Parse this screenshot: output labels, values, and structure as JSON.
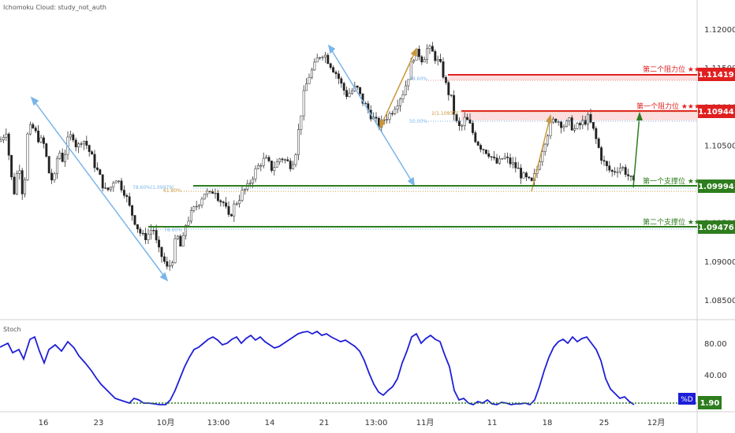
{
  "header": {
    "indicator_label": "Ichomoku Cloud: study_not_auth"
  },
  "stoch_label": "Stoch",
  "chart_data": {
    "type": "candlestick",
    "price_axis": {
      "min": 1.0825,
      "max": 1.1225,
      "ticks": [
        1.085,
        1.09,
        1.095,
        1.1,
        1.105,
        1.11,
        1.115,
        1.12
      ]
    },
    "stoch_axis": {
      "min": 0,
      "max": 100,
      "ticks": [
        40,
        80
      ]
    },
    "x_ticks": [
      "16",
      "23",
      "10月",
      "13:00",
      "14",
      "21",
      "13:00",
      "11月",
      "11",
      "18",
      "25",
      "12月"
    ],
    "resistance": [
      {
        "label": "第二个阻力位 ★★",
        "value": 1.11419,
        "color": "#e02020"
      },
      {
        "label": "第一个阻力位 ★★★",
        "value": 1.10944,
        "color": "#e02020"
      }
    ],
    "support": [
      {
        "label": "第一个支撑位 ★★",
        "value": 1.09994,
        "color": "#2e7d1e"
      },
      {
        "label": "第二个支撑位 ★★",
        "value": 1.09476,
        "color": "#2e7d1e"
      }
    ],
    "price_labels": [
      "1.11419",
      "1.10944",
      "1.09994",
      "1.09476"
    ],
    "fib_labels": [
      "78.60%",
      "1(1.10937)",
      "50.00%",
      "78.60%(1.09979)",
      "61.80%",
      "78.60%"
    ],
    "stoch_current": "1.90",
    "stoch_tag": "%D",
    "candle_path": [
      [
        0,
        1.1055
      ],
      [
        8,
        1.107
      ],
      [
        14,
        1.101
      ],
      [
        18,
        1.099
      ],
      [
        24,
        1.103
      ],
      [
        30,
        1.0975
      ],
      [
        34,
        1.106
      ],
      [
        40,
        1.1075
      ],
      [
        48,
        1.106
      ],
      [
        56,
        1.105
      ],
      [
        62,
        1.1015
      ],
      [
        68,
        1.1
      ],
      [
        74,
        1.1045
      ],
      [
        80,
        1.103
      ],
      [
        86,
        1.1055
      ],
      [
        92,
        1.1065
      ],
      [
        98,
        1.1045
      ],
      [
        104,
        1.106
      ],
      [
        110,
        1.105
      ],
      [
        116,
        1.1035
      ],
      [
        122,
        1.102
      ],
      [
        128,
        1.1005
      ],
      [
        134,
        1.099
      ],
      [
        140,
        1.0995
      ],
      [
        146,
        1.101
      ],
      [
        152,
        1.1
      ],
      [
        158,
        1.099
      ],
      [
        164,
        1.097
      ],
      [
        170,
        1.0955
      ],
      [
        176,
        1.094
      ],
      [
        182,
        1.093
      ],
      [
        188,
        1.0935
      ],
      [
        194,
        1.0945
      ],
      [
        200,
        1.0915
      ],
      [
        206,
        1.0905
      ],
      [
        212,
        1.089
      ],
      [
        218,
        1.09
      ],
      [
        224,
        1.0935
      ],
      [
        230,
        1.0915
      ],
      [
        236,
        1.095
      ],
      [
        242,
        1.096
      ],
      [
        248,
        1.097
      ],
      [
        254,
        1.098
      ],
      [
        260,
        1.099
      ],
      [
        266,
        1.0985
      ],
      [
        272,
        1.0995
      ],
      [
        278,
        1.098
      ],
      [
        284,
        1.0975
      ],
      [
        290,
        1.0955
      ],
      [
        296,
        1.097
      ],
      [
        302,
        1.098
      ],
      [
        308,
        1.099
      ],
      [
        314,
        1.0995
      ],
      [
        320,
        1.101
      ],
      [
        326,
        1.102
      ],
      [
        332,
        1.103
      ],
      [
        338,
        1.103
      ],
      [
        344,
        1.102
      ],
      [
        350,
        1.1025
      ],
      [
        356,
        1.1035
      ],
      [
        362,
        1.103
      ],
      [
        368,
        1.1025
      ],
      [
        374,
        1.1035
      ],
      [
        380,
        1.108
      ],
      [
        386,
        1.112
      ],
      [
        392,
        1.114
      ],
      [
        398,
        1.115
      ],
      [
        404,
        1.1165
      ],
      [
        410,
        1.117
      ],
      [
        416,
        1.116
      ],
      [
        422,
        1.115
      ],
      [
        428,
        1.114
      ],
      [
        434,
        1.1125
      ],
      [
        440,
        1.1115
      ],
      [
        446,
        1.112
      ],
      [
        452,
        1.1125
      ],
      [
        458,
        1.111
      ],
      [
        464,
        1.11
      ],
      [
        470,
        1.109
      ],
      [
        476,
        1.108
      ],
      [
        482,
        1.1075
      ],
      [
        488,
        1.1085
      ],
      [
        494,
        1.109
      ],
      [
        500,
        1.11
      ],
      [
        506,
        1.111
      ],
      [
        512,
        1.112
      ],
      [
        518,
        1.114
      ],
      [
        524,
        1.1165
      ],
      [
        530,
        1.117
      ],
      [
        536,
        1.116
      ],
      [
        542,
        1.1175
      ],
      [
        548,
        1.117
      ],
      [
        554,
        1.116
      ],
      [
        560,
        1.115
      ],
      [
        566,
        1.1125
      ],
      [
        572,
        1.111
      ],
      [
        578,
        1.108
      ],
      [
        584,
        1.107
      ],
      [
        590,
        1.1085
      ],
      [
        596,
        1.1075
      ],
      [
        602,
        1.106
      ],
      [
        608,
        1.105
      ],
      [
        614,
        1.1045
      ],
      [
        620,
        1.104
      ],
      [
        626,
        1.103
      ],
      [
        632,
        1.1025
      ],
      [
        638,
        1.1035
      ],
      [
        644,
        1.103
      ],
      [
        650,
        1.1025
      ],
      [
        656,
        1.102
      ],
      [
        662,
        1.101
      ],
      [
        668,
        1.1005
      ],
      [
        674,
        1.1
      ],
      [
        680,
        1.1015
      ],
      [
        686,
        1.104
      ],
      [
        692,
        1.106
      ],
      [
        698,
        1.1075
      ],
      [
        704,
        1.1085
      ],
      [
        710,
        1.108
      ],
      [
        716,
        1.1075
      ],
      [
        722,
        1.108
      ],
      [
        728,
        1.107
      ],
      [
        734,
        1.1075
      ],
      [
        740,
        1.108
      ],
      [
        746,
        1.1085
      ],
      [
        752,
        1.107
      ],
      [
        758,
        1.105
      ],
      [
        764,
        1.103
      ],
      [
        770,
        1.102
      ],
      [
        776,
        1.1015
      ],
      [
        782,
        1.102
      ],
      [
        788,
        1.1022
      ],
      [
        794,
        1.1015
      ],
      [
        800,
        1.1005
      ],
      [
        804,
        1.0998
      ]
    ],
    "stoch_series": [
      [
        0,
        75
      ],
      [
        10,
        80
      ],
      [
        16,
        68
      ],
      [
        24,
        72
      ],
      [
        30,
        60
      ],
      [
        38,
        85
      ],
      [
        44,
        88
      ],
      [
        50,
        70
      ],
      [
        56,
        55
      ],
      [
        62,
        72
      ],
      [
        70,
        78
      ],
      [
        78,
        70
      ],
      [
        86,
        82
      ],
      [
        94,
        74
      ],
      [
        100,
        64
      ],
      [
        108,
        55
      ],
      [
        116,
        45
      ],
      [
        122,
        36
      ],
      [
        128,
        28
      ],
      [
        134,
        22
      ],
      [
        140,
        16
      ],
      [
        146,
        10
      ],
      [
        152,
        8
      ],
      [
        158,
        6
      ],
      [
        164,
        4
      ],
      [
        170,
        10
      ],
      [
        176,
        8
      ],
      [
        182,
        4
      ],
      [
        188,
        4
      ],
      [
        196,
        3
      ],
      [
        202,
        2
      ],
      [
        210,
        2
      ],
      [
        216,
        8
      ],
      [
        222,
        20
      ],
      [
        228,
        35
      ],
      [
        234,
        50
      ],
      [
        240,
        62
      ],
      [
        246,
        72
      ],
      [
        252,
        75
      ],
      [
        258,
        80
      ],
      [
        264,
        85
      ],
      [
        270,
        88
      ],
      [
        276,
        84
      ],
      [
        282,
        78
      ],
      [
        288,
        80
      ],
      [
        294,
        85
      ],
      [
        300,
        88
      ],
      [
        306,
        80
      ],
      [
        312,
        86
      ],
      [
        318,
        90
      ],
      [
        324,
        84
      ],
      [
        330,
        88
      ],
      [
        336,
        82
      ],
      [
        342,
        78
      ],
      [
        348,
        74
      ],
      [
        354,
        76
      ],
      [
        360,
        80
      ],
      [
        366,
        84
      ],
      [
        372,
        88
      ],
      [
        378,
        92
      ],
      [
        384,
        94
      ],
      [
        390,
        95
      ],
      [
        396,
        92
      ],
      [
        402,
        95
      ],
      [
        408,
        90
      ],
      [
        414,
        92
      ],
      [
        420,
        88
      ],
      [
        426,
        85
      ],
      [
        432,
        82
      ],
      [
        438,
        84
      ],
      [
        444,
        80
      ],
      [
        450,
        76
      ],
      [
        456,
        70
      ],
      [
        462,
        58
      ],
      [
        468,
        42
      ],
      [
        474,
        28
      ],
      [
        480,
        18
      ],
      [
        486,
        14
      ],
      [
        492,
        20
      ],
      [
        498,
        25
      ],
      [
        504,
        35
      ],
      [
        510,
        55
      ],
      [
        516,
        70
      ],
      [
        522,
        88
      ],
      [
        528,
        92
      ],
      [
        534,
        80
      ],
      [
        540,
        86
      ],
      [
        546,
        90
      ],
      [
        552,
        85
      ],
      [
        558,
        82
      ],
      [
        564,
        65
      ],
      [
        570,
        50
      ],
      [
        576,
        20
      ],
      [
        582,
        8
      ],
      [
        588,
        10
      ],
      [
        594,
        4
      ],
      [
        600,
        2
      ],
      [
        606,
        6
      ],
      [
        612,
        4
      ],
      [
        618,
        8
      ],
      [
        624,
        3
      ],
      [
        630,
        2
      ],
      [
        636,
        5
      ],
      [
        642,
        4
      ],
      [
        648,
        2
      ],
      [
        654,
        3
      ],
      [
        660,
        3
      ],
      [
        666,
        4
      ],
      [
        672,
        2
      ],
      [
        678,
        8
      ],
      [
        684,
        25
      ],
      [
        690,
        45
      ],
      [
        696,
        62
      ],
      [
        702,
        75
      ],
      [
        708,
        82
      ],
      [
        714,
        85
      ],
      [
        720,
        80
      ],
      [
        726,
        88
      ],
      [
        732,
        82
      ],
      [
        738,
        86
      ],
      [
        744,
        88
      ],
      [
        750,
        80
      ],
      [
        756,
        72
      ],
      [
        762,
        58
      ],
      [
        768,
        35
      ],
      [
        774,
        22
      ],
      [
        780,
        16
      ],
      [
        786,
        10
      ],
      [
        792,
        12
      ],
      [
        798,
        6
      ],
      [
        804,
        2
      ]
    ]
  }
}
